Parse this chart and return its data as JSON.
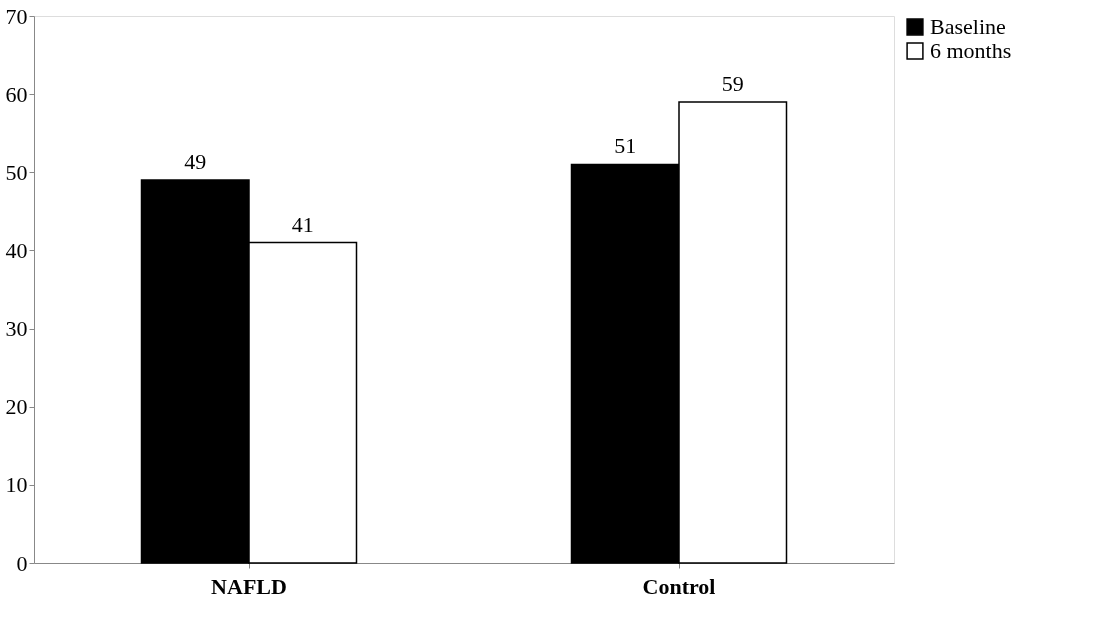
{
  "chart_data": {
    "type": "bar",
    "categories": [
      "NAFLD",
      "Control"
    ],
    "series": [
      {
        "name": "Baseline",
        "color": "#000000",
        "values": [
          49,
          51
        ]
      },
      {
        "name": "6 months",
        "color": "#ffffff",
        "values": [
          41,
          59
        ]
      }
    ],
    "ylim": [
      0,
      70
    ],
    "yticks": [
      0,
      10,
      20,
      30,
      40,
      50,
      60,
      70
    ],
    "data_labels": true,
    "grid": false,
    "legend": "right"
  }
}
